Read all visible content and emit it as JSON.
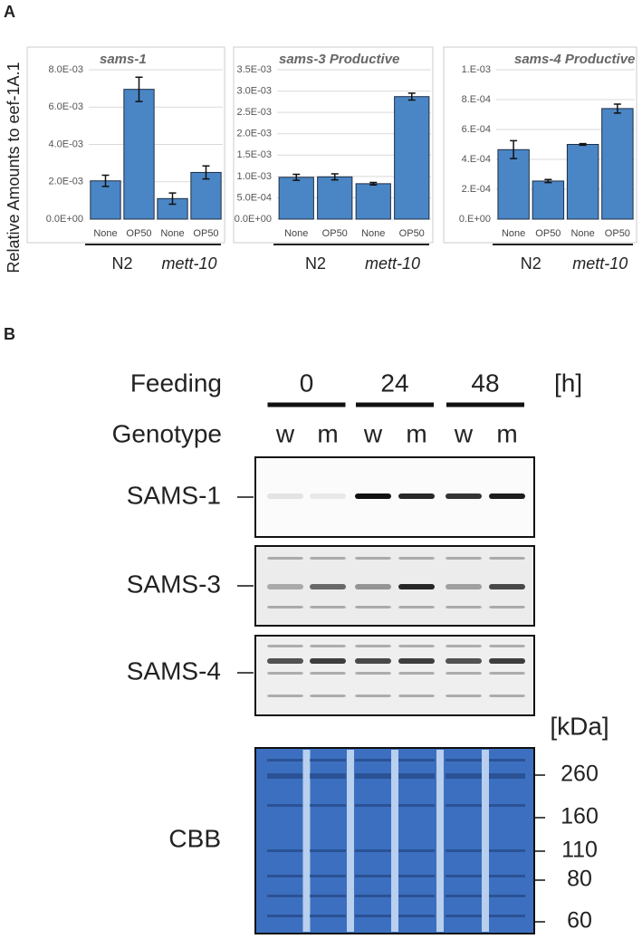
{
  "panel_labels": [
    "A",
    "B"
  ],
  "y_axis_label": "Relative Amounts to eef-1A.1",
  "chart_data": [
    {
      "type": "bar",
      "title": "sams-1",
      "categories": [
        "None",
        "OP50",
        "None",
        "OP50"
      ],
      "groups": [
        "N2",
        "mett-10"
      ],
      "values": [
        0.00205,
        0.00695,
        0.0011,
        0.0025
      ],
      "errors": [
        0.0003,
        0.00065,
        0.0003,
        0.00035
      ],
      "color": "#4a86c5",
      "ylim": [
        0,
        0.008
      ],
      "yticks": [
        {
          "value": 0,
          "label": "0.0E+00"
        },
        {
          "value": 0.002,
          "label": "2.0E-03"
        },
        {
          "value": 0.004,
          "label": "4.0E-03"
        },
        {
          "value": 0.006,
          "label": "6.0E-03"
        },
        {
          "value": 0.008,
          "label": "8.0E-03"
        }
      ],
      "grid": true
    },
    {
      "type": "bar",
      "title": "sams-3 Productive",
      "categories": [
        "None",
        "OP50",
        "None",
        "OP50"
      ],
      "groups": [
        "N2",
        "mett-10"
      ],
      "values": [
        0.00098,
        0.00099,
        0.00083,
        0.00287
      ],
      "errors": [
        7e-05,
        7e-05,
        3e-05,
        8e-05
      ],
      "color": "#4a86c5",
      "ylim": [
        0,
        0.0035
      ],
      "yticks": [
        {
          "value": 0,
          "label": "0.0E+00"
        },
        {
          "value": 0.0005,
          "label": "5.0E-04"
        },
        {
          "value": 0.001,
          "label": "1.0E-03"
        },
        {
          "value": 0.0015,
          "label": "1.5E-03"
        },
        {
          "value": 0.002,
          "label": "2.0E-03"
        },
        {
          "value": 0.0025,
          "label": "2.5E-03"
        },
        {
          "value": 0.003,
          "label": "3.0E-03"
        },
        {
          "value": 0.0035,
          "label": "3.5E-03"
        }
      ],
      "grid": true
    },
    {
      "type": "bar",
      "title": "sams-4 Productive",
      "categories": [
        "None",
        "OP50",
        "None",
        "OP50"
      ],
      "groups": [
        "N2",
        "mett-10"
      ],
      "values": [
        0.000465,
        0.000255,
        0.0005,
        0.00074
      ],
      "errors": [
        6e-05,
        1e-05,
        5e-06,
        3e-05
      ],
      "color": "#4a86c5",
      "ylim": [
        0,
        0.001
      ],
      "yticks": [
        {
          "value": 0,
          "label": "0.E+00"
        },
        {
          "value": 0.0002,
          "label": "2.E-04"
        },
        {
          "value": 0.0004,
          "label": "4.E-04"
        },
        {
          "value": 0.0006,
          "label": "6.E-04"
        },
        {
          "value": 0.0008,
          "label": "8.E-04"
        },
        {
          "value": 0.001,
          "label": "1.E-03"
        }
      ],
      "grid": true
    }
  ],
  "blot": {
    "feeding_label": "Feeding",
    "time_points": [
      "0",
      "24",
      "48"
    ],
    "time_unit": "[h]",
    "genotype_label": "Genotype",
    "genotypes": [
      "w",
      "m",
      "w",
      "m",
      "w",
      "m"
    ],
    "blots": [
      "SAMS-1",
      "SAMS-3",
      "SAMS-4",
      "CBB"
    ],
    "marker_unit": "[kDa]",
    "markers": [
      260,
      160,
      110,
      80,
      60
    ]
  }
}
